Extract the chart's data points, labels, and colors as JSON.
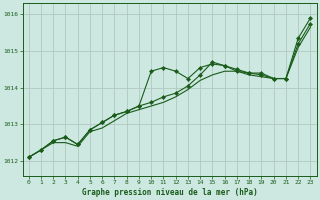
{
  "title": "Graphe pression niveau de la mer (hPa)",
  "background_color": "#cce8e0",
  "grid_color": "#b0c8c0",
  "line_color": "#1a5c1a",
  "xlim": [
    -0.5,
    23.5
  ],
  "ylim": [
    1011.6,
    1016.3
  ],
  "yticks": [
    1012,
    1013,
    1014,
    1015,
    1016
  ],
  "xticks": [
    0,
    1,
    2,
    3,
    4,
    5,
    6,
    7,
    8,
    9,
    10,
    11,
    12,
    13,
    14,
    15,
    16,
    17,
    18,
    19,
    20,
    21,
    22,
    23
  ],
  "series_upper": [
    1012.1,
    1012.3,
    1012.55,
    1012.65,
    1012.45,
    1012.85,
    1013.05,
    1013.25,
    1013.35,
    1013.5,
    1014.45,
    1014.55,
    1014.45,
    1014.25,
    1014.55,
    1014.65,
    1014.6,
    1014.5,
    1014.4,
    1014.4,
    1014.25,
    1014.25,
    1015.35,
    1015.9
  ],
  "series_middle": [
    1012.1,
    1012.3,
    1012.55,
    1012.65,
    1012.45,
    1012.85,
    1013.05,
    1013.25,
    1013.35,
    1013.5,
    1013.6,
    1013.75,
    1013.85,
    1014.05,
    1014.35,
    1014.7,
    1014.6,
    1014.45,
    1014.4,
    1014.35,
    1014.25,
    1014.25,
    1015.2,
    1015.75
  ],
  "series_lower": [
    1012.1,
    1012.3,
    1012.5,
    1012.5,
    1012.4,
    1012.8,
    1012.9,
    1013.1,
    1013.3,
    1013.4,
    1013.5,
    1013.6,
    1013.75,
    1013.95,
    1014.2,
    1014.35,
    1014.45,
    1014.45,
    1014.35,
    1014.3,
    1014.25,
    1014.25,
    1015.1,
    1015.65
  ]
}
